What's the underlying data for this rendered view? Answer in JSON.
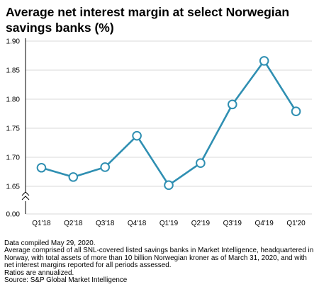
{
  "title": "Average net interest margin at select Norwegian savings banks (%)",
  "chart_data": {
    "type": "line",
    "title": "Average net interest margin at select Norwegian savings banks (%)",
    "xlabel": "",
    "ylabel": "",
    "categories": [
      "Q1'18",
      "Q2'18",
      "Q3'18",
      "Q4'18",
      "Q1'19",
      "Q2'19",
      "Q3'19",
      "Q4'19",
      "Q1'20"
    ],
    "series": [
      {
        "values": [
          1.682,
          1.666,
          1.683,
          1.737,
          1.652,
          1.69,
          1.791,
          1.866,
          1.779
        ]
      }
    ],
    "y_ticks": [
      "1.90",
      "1.85",
      "1.80",
      "1.75",
      "1.70",
      "1.65",
      "0.00"
    ],
    "ylim": [
      1.65,
      1.9
    ],
    "axis_break": true,
    "grid": "horizontal",
    "legend": "none",
    "line_color": "#2f8fb2",
    "marker_fill": "#ffffff"
  },
  "footnotes": [
    "Data compiled May 29, 2020.",
    "Average comprised of all SNL-covered listed savings banks in Market Intelligence, headquartered in Norway, with total assets of more than 10 billion Norwegian kroner as of March 31, 2020, and with net interest margins reported for all periods assessed.",
    "Ratios are annualized.",
    "Source: S&P Global Market Intelligence"
  ]
}
